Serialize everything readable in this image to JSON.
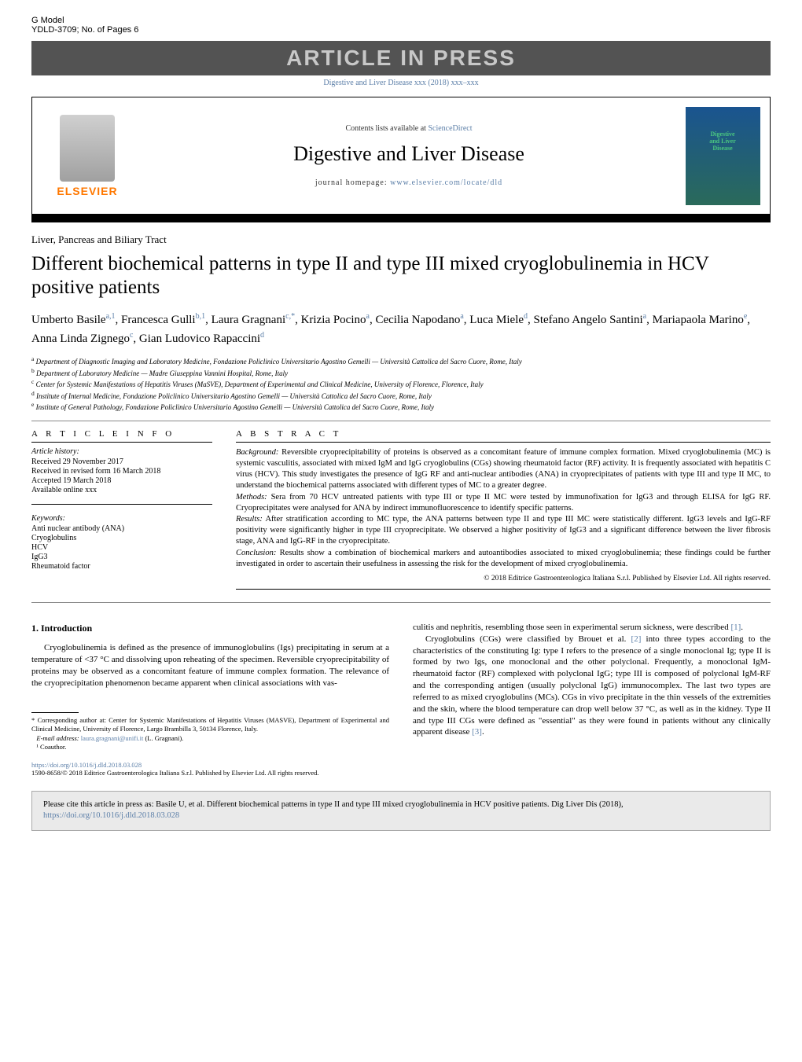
{
  "topbar": {
    "gmodel": "G Model",
    "ref": "YDLD-3709;   No. of Pages 6",
    "press_banner": "ARTICLE IN PRESS",
    "citation": "Digestive and Liver Disease xxx (2018) xxx–xxx"
  },
  "header": {
    "contents_text": "Contents lists available at ",
    "contents_link": "ScienceDirect",
    "journal_title": "Digestive and Liver Disease",
    "homepage_label": "journal homepage: ",
    "homepage_url": "www.elsevier.com/locate/dld",
    "elsevier": "ELSEVIER",
    "cover_label": "Digestive\nand Liver\nDisease"
  },
  "section_label": "Liver, Pancreas and Biliary Tract",
  "title": "Different biochemical patterns in type II and type III mixed cryoglobulinemia in HCV positive patients",
  "authors_html": "Umberto Basile<sup>a,1</sup>, Francesca Gulli<sup>b,1</sup>, Laura Gragnani<sup>c,*</sup>, Krizia Pocino<sup>a</sup>, Cecilia Napodano<sup>a</sup>, Luca Miele<sup>d</sup>, Stefano Angelo Santini<sup>a</sup>, Mariapaola Marino<sup>e</sup>, Anna Linda Zignego<sup>c</sup>, Gian Ludovico Rapaccini<sup>d</sup>",
  "affiliations": [
    {
      "sup": "a",
      "text": "Department of Diagnostic Imaging and Laboratory Medicine, Fondazione Policlinico Universitario Agostino Gemelli — Università Cattolica del Sacro Cuore, Rome, Italy"
    },
    {
      "sup": "b",
      "text": "Department of Laboratory Medicine — Madre Giuseppina Vannini Hospital, Rome, Italy"
    },
    {
      "sup": "c",
      "text": "Center for Systemic Manifestations of Hepatitis Viruses (MaSVE), Department of Experimental and Clinical Medicine, University of Florence, Florence, Italy"
    },
    {
      "sup": "d",
      "text": "Institute of Internal Medicine, Fondazione Policlinico Universitario Agostino Gemelli — Università Cattolica del Sacro Cuore, Rome, Italy"
    },
    {
      "sup": "e",
      "text": "Institute of General Pathology, Fondazione Policlinico Universitario Agostino Gemelli — Università Cattolica del Sacro Cuore, Rome, Italy"
    }
  ],
  "info": {
    "header": "a r t i c l e   i n f o",
    "history_label": "Article history:",
    "received": "Received 29 November 2017",
    "revised": "Received in revised form 16 March 2018",
    "accepted": "Accepted 19 March 2018",
    "online": "Available online xxx",
    "keywords_label": "Keywords:",
    "keywords": [
      "Anti nuclear antibody (ANA)",
      "Cryoglobulins",
      "HCV",
      "IgG3",
      "Rheumatoid factor"
    ]
  },
  "abstract": {
    "header": "a b s t r a c t",
    "background_label": "Background:",
    "background": "Reversible cryoprecipitability of proteins is observed as a concomitant feature of immune complex formation. Mixed cryoglobulinemia (MC) is systemic vasculitis, associated with mixed IgM and IgG cryoglobulins (CGs) showing rheumatoid factor (RF) activity. It is frequently associated with hepatitis C virus (HCV). This study investigates the presence of IgG RF and anti-nuclear antibodies (ANA) in cryoprecipitates of patients with type III and type II MC, to understand the biochemical patterns associated with different types of MC to a greater degree.",
    "methods_label": "Methods:",
    "methods": "Sera from 70 HCV untreated patients with type III or type II MC were tested by immunofixation for IgG3 and through ELISA for IgG RF. Cryoprecipitates were analysed for ANA by indirect immunofluorescence to identify specific patterns.",
    "results_label": "Results:",
    "results": "After stratification according to MC type, the ANA patterns between type II and type III MC were statistically different. IgG3 levels and IgG-RF positivity were significantly higher in type III cryoprecipitate. We observed a higher positivity of IgG3 and a significant difference between the liver fibrosis stage, ANA and IgG-RF in the cryoprecipitate.",
    "conclusion_label": "Conclusion:",
    "conclusion": "Results show a combination of biochemical markers and autoantibodies associated to mixed cryoglobulinemia; these findings could be further investigated in order to ascertain their usefulness in assessing the risk for the development of mixed cryoglobulinemia.",
    "copyright": "© 2018 Editrice Gastroenterologica Italiana S.r.l. Published by Elsevier Ltd. All rights reserved."
  },
  "intro": {
    "heading": "1.  Introduction",
    "col1_p1": "Cryoglobulinemia is defined as the presence of immunoglobulins (Igs) precipitating in serum at a temperature of <37 °C and dissolving upon reheating of the specimen. Reversible cryoprecipitability of proteins may be observed as a concomitant feature of immune complex formation. The relevance of the cryoprecipitation phenomenon became apparent when clinical associations with vas-",
    "col2_p1_a": "culitis and nephritis, resembling those seen in experimental serum sickness, were described ",
    "col2_p1_ref": "[1]",
    "col2_p1_b": ".",
    "col2_p2_a": "Cryoglobulins (CGs) were classified by Brouet et al. ",
    "col2_p2_ref": "[2]",
    "col2_p2_b": " into three types according to the characteristics of the constituting Ig: type I refers to the presence of a single monoclonal Ig; type II is formed by two Igs, one monoclonal and the other polyclonal. Frequently, a monoclonal IgM-rheumatoid factor (RF) complexed with polyclonal IgG; type III is composed of polyclonal IgM-RF and the corresponding antigen (usually polyclonal IgG) immunocomplex. The last two types are referred to as mixed cryoglobulins (MCs). CGs in vivo precipitate in the thin vessels of the extremities and the skin, where the blood temperature can drop well below 37 °C, as well as in the kidney. Type II and type III CGs were defined as \"essential\" as they were found in patients without any clinically apparent disease ",
    "col2_p2_ref2": "[3]",
    "col2_p2_c": "."
  },
  "footnotes": {
    "corr": "* Corresponding author at: Center for Systemic Manifestations of Hepatitis Viruses (MASVE), Department of Experimental and Clinical Medicine, University of Florence, Largo Brambilla 3, 50134 Florence, Italy.",
    "email_label": "E-mail address: ",
    "email": "laura.gragnani@unifi.it",
    "email_person": " (L. Gragnani).",
    "coauthor": "¹ Coauthor."
  },
  "doi": {
    "url": "https://doi.org/10.1016/j.dld.2018.03.028",
    "issn_line": "1590-8658/© 2018 Editrice Gastroenterologica Italiana S.r.l. Published by Elsevier Ltd. All rights reserved."
  },
  "citebox": {
    "text": "Please cite this article in press as: Basile U, et al. Different biochemical patterns in type II and type III mixed cryoglobulinemia in HCV positive patients. Dig Liver Dis (2018), ",
    "url": "https://doi.org/10.1016/j.dld.2018.03.028"
  },
  "colors": {
    "banner_bg": "#535353",
    "banner_fg": "#c8c8c8",
    "link": "#5c7fa8",
    "elsevier_orange": "#ff7800",
    "citebox_bg": "#eaeaea"
  }
}
